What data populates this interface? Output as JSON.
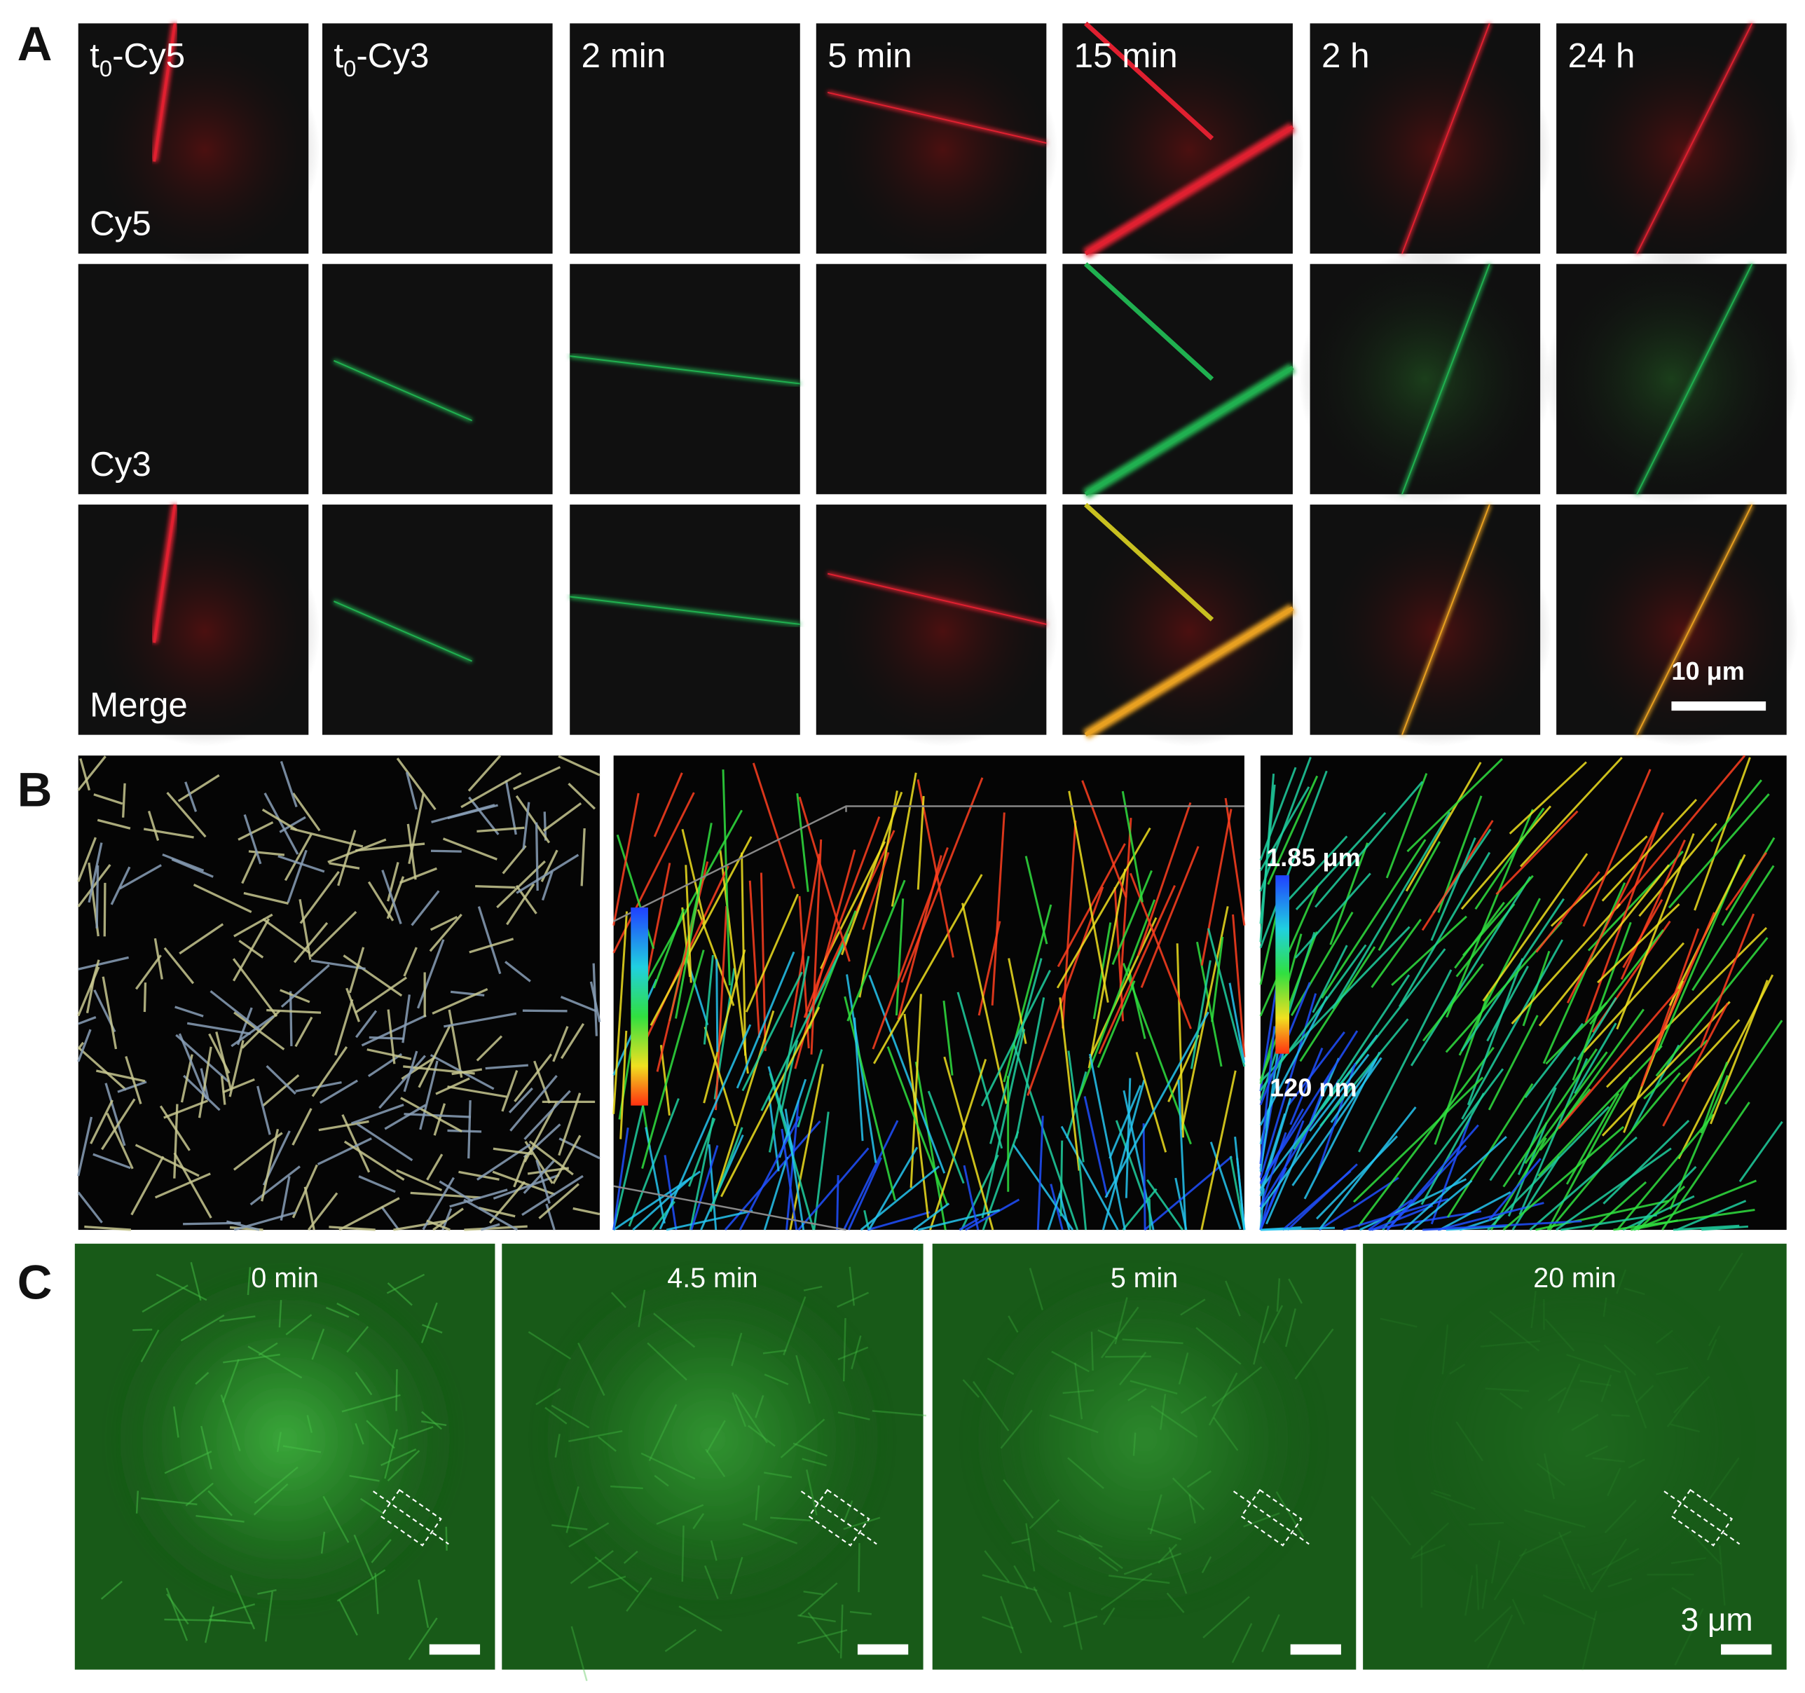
{
  "figure": {
    "panel_a": {
      "letter": "A",
      "columns": [
        {
          "base": "t",
          "sub": "0",
          "rest": "-Cy5"
        },
        {
          "base": "t",
          "sub": "0",
          "rest": "-Cy3"
        },
        {
          "label": "2 min"
        },
        {
          "label": "5 min"
        },
        {
          "label": "15 min"
        },
        {
          "label": "2 h"
        },
        {
          "label": "24 h"
        }
      ],
      "rows": [
        "Cy5",
        "Cy3",
        "Merge"
      ],
      "scale_bar": "10 μm"
    },
    "panel_b": {
      "letter": "B",
      "colorbar_top": "1.85 μm",
      "colorbar_bottom": "120 nm"
    },
    "panel_c": {
      "letter": "C",
      "times": [
        "0 min",
        "4.5 min",
        "5 min",
        "20 min"
      ],
      "scale_bar": "3 μm"
    }
  }
}
